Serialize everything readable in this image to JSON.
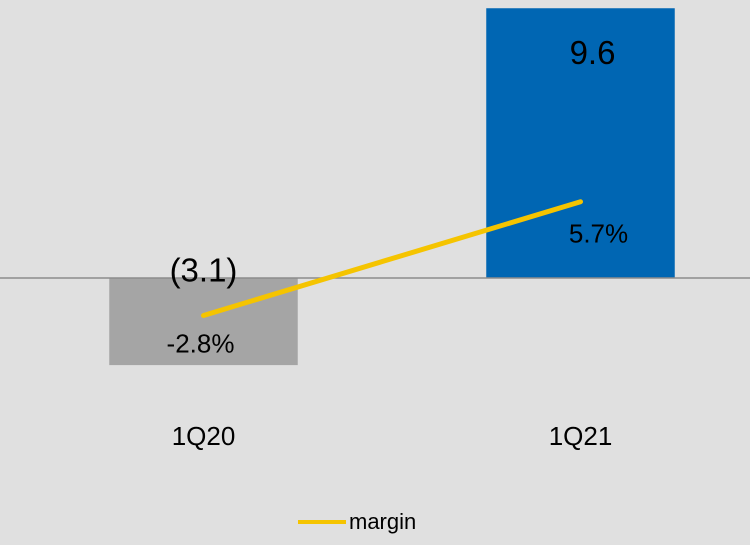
{
  "chart_data": {
    "type": "bar_line",
    "categories": [
      "1Q20",
      "1Q21"
    ],
    "series": [
      {
        "name": null,
        "type": "bar",
        "colors": [
          "#a5a5a5",
          "#0066b3"
        ],
        "values": [
          -3.1,
          9.6
        ],
        "value_labels": [
          "(3.1)",
          "9.6"
        ]
      },
      {
        "name": "margin",
        "type": "line",
        "axis": "y2",
        "color": "#f5c400",
        "values": [
          -2.8,
          5.7
        ],
        "value_labels": [
          "-2.8%",
          "5.7%"
        ]
      }
    ],
    "ylim": [
      -4,
      10
    ],
    "y2lim": [
      -8.4,
      21
    ],
    "legend": "bottom"
  }
}
